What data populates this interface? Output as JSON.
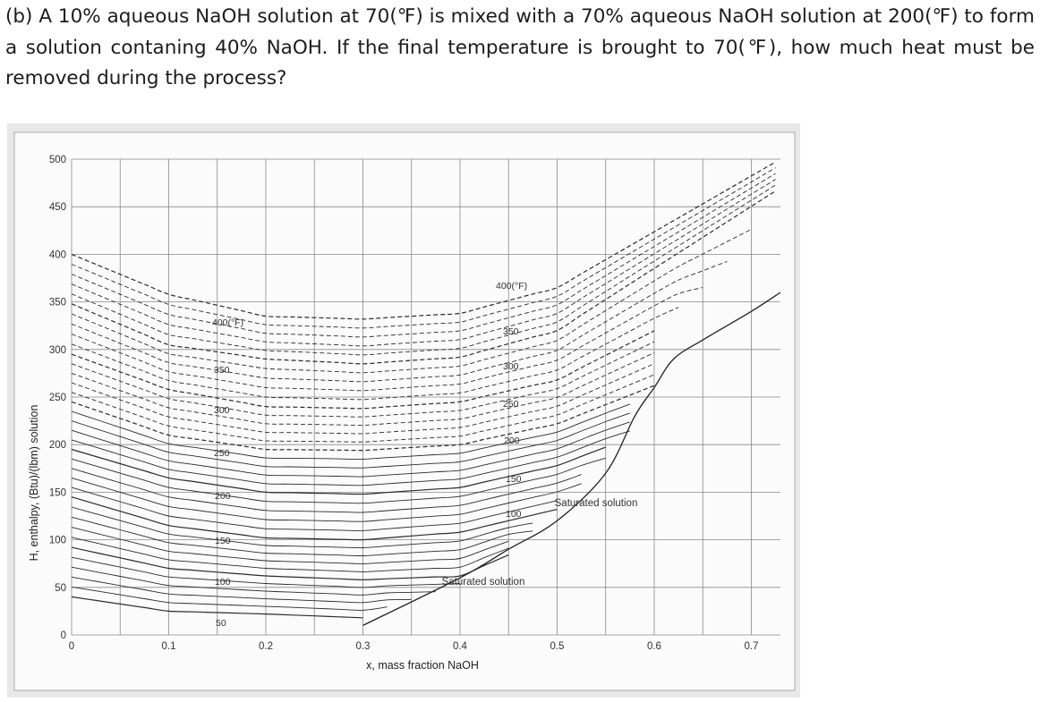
{
  "problem": {
    "text": "(b) A 10% aqueous NaOH solution at 70(℉) is mixed with a 70% aqueous NaOH solution at 200(℉) to form a solution contaning 40% NaOH. If the final temperature is brought to 70(℉), how much heat must be removed during the process?"
  },
  "chart_data": {
    "type": "line",
    "title": "",
    "xlabel": "x, mass fraction NaOH",
    "ylabel": "H, enthalpy, (Btu)/(lbm) solution",
    "xlim": [
      0,
      0.73
    ],
    "ylim": [
      0,
      500
    ],
    "x_ticks": [
      "0",
      "0.1",
      "0.2",
      "0.3",
      "0.4",
      "0.5",
      "0.6",
      "0.7"
    ],
    "y_ticks": [
      "0",
      "50",
      "100",
      "150",
      "200",
      "250",
      "300",
      "350",
      "400",
      "450",
      "500"
    ],
    "grid": true,
    "series": [
      {
        "name": "50",
        "x": [
          0.0,
          0.1,
          0.2,
          0.3,
          0.32
        ],
        "y": [
          40,
          25,
          22,
          18,
          22
        ]
      },
      {
        "name": "100",
        "x": [
          0.0,
          0.1,
          0.2,
          0.3,
          0.4,
          0.45
        ],
        "y": [
          92,
          70,
          62,
          58,
          62,
          84
        ]
      },
      {
        "name": "150",
        "x": [
          0.0,
          0.1,
          0.2,
          0.3,
          0.4,
          0.5,
          0.51
        ],
        "y": [
          145,
          115,
          102,
          100,
          108,
          132,
          140
        ]
      },
      {
        "name": "200",
        "x": [
          0.0,
          0.1,
          0.2,
          0.3,
          0.4,
          0.5,
          0.57
        ],
        "y": [
          195,
          165,
          150,
          148,
          155,
          178,
          205
        ]
      },
      {
        "name": "250",
        "x": [
          0.0,
          0.1,
          0.2,
          0.3,
          0.4,
          0.5,
          0.6
        ],
        "y": [
          245,
          210,
          195,
          194,
          200,
          222,
          262
        ]
      },
      {
        "name": "300",
        "x": [
          0.0,
          0.1,
          0.2,
          0.3,
          0.4,
          0.5,
          0.62
        ],
        "y": [
          295,
          258,
          240,
          238,
          245,
          268,
          330
        ]
      },
      {
        "name": "350",
        "x": [
          0.0,
          0.1,
          0.2,
          0.3,
          0.4,
          0.5,
          0.73
        ],
        "y": [
          348,
          305,
          290,
          285,
          292,
          320,
          470
        ]
      },
      {
        "name": "400(°F)",
        "x": [
          0.0,
          0.1,
          0.2,
          0.3,
          0.4,
          0.5,
          0.73
        ],
        "y": [
          400,
          358,
          335,
          332,
          338,
          365,
          500
        ]
      }
    ],
    "saturation_curve": {
      "x": [
        0.3,
        0.4,
        0.45,
        0.5,
        0.55,
        0.58,
        0.6,
        0.62,
        0.65,
        0.7,
        0.73
      ],
      "y": [
        10,
        60,
        90,
        120,
        170,
        230,
        260,
        290,
        310,
        340,
        360
      ]
    },
    "annotations": [
      "400(°F)",
      "350",
      "300",
      "250",
      "200",
      "150",
      "100",
      "50",
      "400(°F)",
      "350",
      "300",
      "250",
      "200",
      "150",
      "100",
      "Saturated solution",
      "Saturated solution"
    ]
  }
}
